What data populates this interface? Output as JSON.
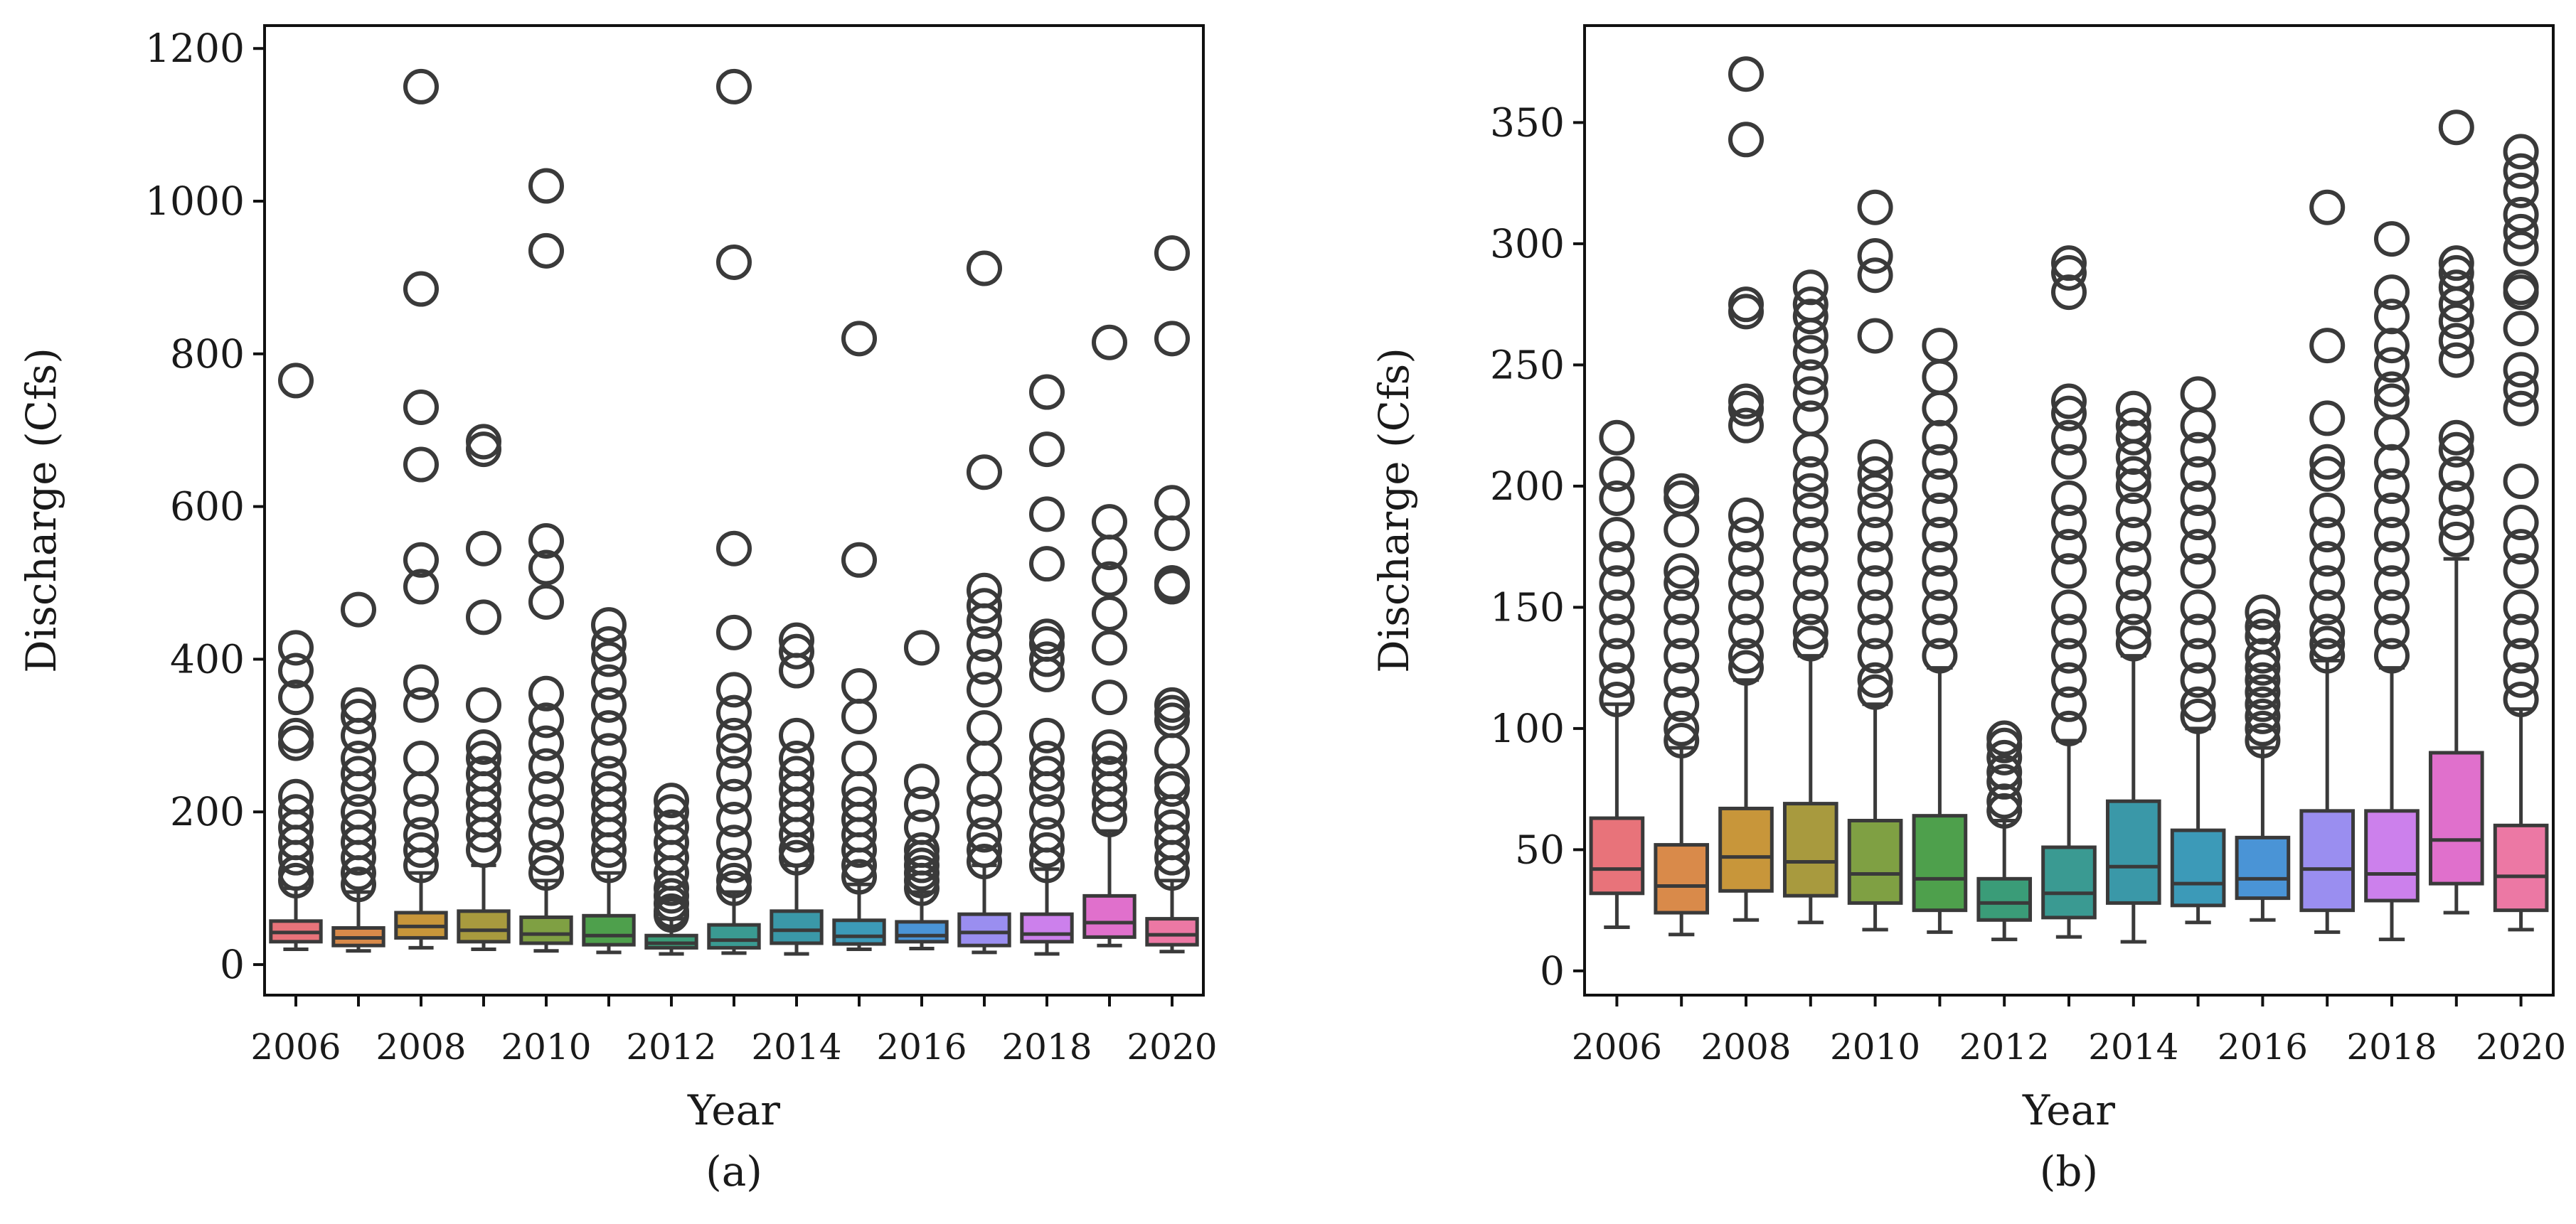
{
  "chart_data": [
    {
      "type": "box",
      "caption": "(a)",
      "title": "",
      "xlabel": "Year",
      "ylabel": "Discharge (Cfs)",
      "ylim": [
        -40,
        1230
      ],
      "yticks": [
        0,
        200,
        400,
        600,
        800,
        1000,
        1200
      ],
      "categories": [
        "2006",
        "2007",
        "2008",
        "2009",
        "2010",
        "2011",
        "2012",
        "2013",
        "2014",
        "2015",
        "2016",
        "2017",
        "2018",
        "2019",
        "2020"
      ],
      "xtick_labels": [
        "2006",
        "2008",
        "2010",
        "2012",
        "2014",
        "2016",
        "2018",
        "2020"
      ],
      "series": [
        {
          "name": "2006",
          "color": "#e8737a",
          "whisker_low": 20,
          "q1": 30,
          "median": 42,
          "q3": 57,
          "whisker_high": 100,
          "outliers": [
            765,
            415,
            385,
            350,
            300,
            290,
            220,
            200,
            180,
            160,
            140,
            120,
            110
          ]
        },
        {
          "name": "2007",
          "color": "#d98a4a",
          "whisker_low": 18,
          "q1": 25,
          "median": 35,
          "q3": 48,
          "whisker_high": 95,
          "outliers": [
            465,
            340,
            325,
            300,
            270,
            250,
            230,
            200,
            180,
            160,
            140,
            120,
            105
          ]
        },
        {
          "name": "2008",
          "color": "#c8963a",
          "whisker_low": 22,
          "q1": 35,
          "median": 50,
          "q3": 68,
          "whisker_high": 120,
          "outliers": [
            1150,
            885,
            730,
            655,
            530,
            495,
            370,
            340,
            270,
            230,
            200,
            170,
            150,
            130
          ]
        },
        {
          "name": "2009",
          "color": "#a89a3e",
          "whisker_low": 20,
          "q1": 30,
          "median": 45,
          "q3": 70,
          "whisker_high": 130,
          "outliers": [
            685,
            675,
            545,
            455,
            340,
            285,
            270,
            250,
            230,
            210,
            190,
            170,
            150
          ]
        },
        {
          "name": "2010",
          "color": "#7fa043",
          "whisker_low": 18,
          "q1": 28,
          "median": 40,
          "q3": 62,
          "whisker_high": 110,
          "outliers": [
            1020,
            935,
            555,
            520,
            475,
            355,
            320,
            290,
            260,
            230,
            200,
            170,
            140,
            120
          ]
        },
        {
          "name": "2011",
          "color": "#4ea04c",
          "whisker_low": 16,
          "q1": 26,
          "median": 38,
          "q3": 64,
          "whisker_high": 120,
          "outliers": [
            445,
            420,
            400,
            370,
            340,
            310,
            280,
            250,
            230,
            210,
            190,
            170,
            150,
            130
          ]
        },
        {
          "name": "2012",
          "color": "#3a9c78",
          "whisker_low": 14,
          "q1": 22,
          "median": 28,
          "q3": 38,
          "whisker_high": 60,
          "outliers": [
            215,
            200,
            180,
            160,
            140,
            120,
            100,
            90,
            80,
            70,
            65
          ]
        },
        {
          "name": "2013",
          "color": "#3a9a92",
          "whisker_low": 15,
          "q1": 22,
          "median": 32,
          "q3": 52,
          "whisker_high": 95,
          "outliers": [
            1150,
            920,
            545,
            435,
            360,
            330,
            300,
            280,
            250,
            220,
            190,
            160,
            130,
            110,
            100
          ]
        },
        {
          "name": "2014",
          "color": "#3a98a8",
          "whisker_low": 14,
          "q1": 28,
          "median": 45,
          "q3": 70,
          "whisker_high": 130,
          "outliers": [
            425,
            410,
            385,
            300,
            270,
            250,
            230,
            210,
            190,
            170,
            150,
            140
          ]
        },
        {
          "name": "2015",
          "color": "#3c9ab8",
          "whisker_low": 20,
          "q1": 27,
          "median": 37,
          "q3": 58,
          "whisker_high": 105,
          "outliers": [
            820,
            530,
            365,
            325,
            270,
            230,
            210,
            190,
            170,
            150,
            130,
            115
          ]
        },
        {
          "name": "2016",
          "color": "#4a94d6",
          "whisker_low": 21,
          "q1": 30,
          "median": 38,
          "q3": 56,
          "whisker_high": 95,
          "outliers": [
            415,
            240,
            210,
            180,
            150,
            140,
            130,
            120,
            110,
            100
          ]
        },
        {
          "name": "2017",
          "color": "#9a8ef0",
          "whisker_low": 16,
          "q1": 25,
          "median": 42,
          "q3": 66,
          "whisker_high": 130,
          "outliers": [
            912,
            645,
            490,
            470,
            450,
            420,
            390,
            360,
            310,
            270,
            230,
            200,
            170,
            150,
            135
          ]
        },
        {
          "name": "2018",
          "color": "#cc80ec",
          "whisker_low": 14,
          "q1": 30,
          "median": 40,
          "q3": 66,
          "whisker_high": 125,
          "outliers": [
            750,
            675,
            590,
            525,
            430,
            420,
            400,
            380,
            300,
            270,
            250,
            230,
            200,
            170,
            150,
            130
          ]
        },
        {
          "name": "2019",
          "color": "#e070cc",
          "whisker_low": 25,
          "q1": 36,
          "median": 55,
          "q3": 90,
          "whisker_high": 175,
          "outliers": [
            815,
            580,
            540,
            505,
            460,
            415,
            350,
            285,
            270,
            250,
            230,
            210,
            190
          ]
        },
        {
          "name": "2020",
          "color": "#ec78a4",
          "whisker_low": 17,
          "q1": 26,
          "median": 39,
          "q3": 60,
          "whisker_high": 110,
          "outliers": [
            932,
            820,
            605,
            565,
            500,
            495,
            340,
            330,
            320,
            280,
            240,
            230,
            200,
            180,
            160,
            140,
            120
          ]
        }
      ]
    },
    {
      "type": "box",
      "caption": "(b)",
      "title": "",
      "xlabel": "Year",
      "ylabel": "Discharge (Cfs)",
      "ylim": [
        -10,
        390
      ],
      "yticks": [
        0,
        50,
        100,
        150,
        200,
        250,
        300,
        350
      ],
      "categories": [
        "2006",
        "2007",
        "2008",
        "2009",
        "2010",
        "2011",
        "2012",
        "2013",
        "2014",
        "2015",
        "2016",
        "2017",
        "2018",
        "2019",
        "2020"
      ],
      "xtick_labels": [
        "2006",
        "2008",
        "2010",
        "2012",
        "2014",
        "2016",
        "2018",
        "2020"
      ],
      "series": [
        {
          "name": "2006",
          "color": "#e8737a",
          "whisker_low": 18,
          "q1": 32,
          "median": 42,
          "q3": 63,
          "whisker_high": 110,
          "outliers": [
            220,
            205,
            195,
            180,
            170,
            160,
            150,
            140,
            130,
            120,
            112
          ]
        },
        {
          "name": "2007",
          "color": "#d98a4a",
          "whisker_low": 15,
          "q1": 24,
          "median": 35,
          "q3": 52,
          "whisker_high": 92,
          "outliers": [
            198,
            195,
            182,
            165,
            160,
            150,
            140,
            130,
            120,
            110,
            100,
            95
          ]
        },
        {
          "name": "2008",
          "color": "#c8963a",
          "whisker_low": 21,
          "q1": 33,
          "median": 47,
          "q3": 67,
          "whisker_high": 120,
          "outliers": [
            370,
            343,
            275,
            272,
            235,
            232,
            225,
            188,
            180,
            170,
            160,
            150,
            140,
            130,
            125
          ]
        },
        {
          "name": "2009",
          "color": "#a89a3e",
          "whisker_low": 20,
          "q1": 31,
          "median": 45,
          "q3": 69,
          "whisker_high": 130,
          "outliers": [
            282,
            275,
            270,
            262,
            255,
            245,
            238,
            228,
            215,
            205,
            198,
            190,
            180,
            170,
            160,
            150,
            140,
            135
          ]
        },
        {
          "name": "2010",
          "color": "#7fa043",
          "whisker_low": 17,
          "q1": 28,
          "median": 40,
          "q3": 62,
          "whisker_high": 110,
          "outliers": [
            315,
            295,
            287,
            262,
            212,
            205,
            198,
            190,
            180,
            170,
            160,
            150,
            140,
            130,
            120,
            115
          ]
        },
        {
          "name": "2011",
          "color": "#4ea04c",
          "whisker_low": 16,
          "q1": 25,
          "median": 38,
          "q3": 64,
          "whisker_high": 125,
          "outliers": [
            258,
            245,
            232,
            220,
            210,
            200,
            190,
            180,
            170,
            160,
            150,
            140,
            130
          ]
        },
        {
          "name": "2012",
          "color": "#3a9c78",
          "whisker_low": 13,
          "q1": 21,
          "median": 28,
          "q3": 38,
          "whisker_high": 62,
          "outliers": [
            96,
            93,
            88,
            82,
            78,
            70,
            66
          ]
        },
        {
          "name": "2013",
          "color": "#3a9a92",
          "whisker_low": 14,
          "q1": 22,
          "median": 32,
          "q3": 51,
          "whisker_high": 95,
          "outliers": [
            292,
            288,
            280,
            235,
            230,
            220,
            210,
            195,
            185,
            175,
            165,
            150,
            140,
            130,
            120,
            110,
            100
          ]
        },
        {
          "name": "2014",
          "color": "#3a98a8",
          "whisker_low": 12,
          "q1": 28,
          "median": 43,
          "q3": 70,
          "whisker_high": 130,
          "outliers": [
            232,
            225,
            220,
            212,
            205,
            200,
            190,
            180,
            170,
            160,
            150,
            140,
            135
          ]
        },
        {
          "name": "2015",
          "color": "#3c9ab8",
          "whisker_low": 20,
          "q1": 27,
          "median": 36,
          "q3": 58,
          "whisker_high": 100,
          "outliers": [
            238,
            225,
            215,
            205,
            195,
            185,
            175,
            165,
            150,
            140,
            130,
            120,
            110,
            105
          ]
        },
        {
          "name": "2016",
          "color": "#4a94d6",
          "whisker_low": 21,
          "q1": 30,
          "median": 38,
          "q3": 55,
          "whisker_high": 92,
          "outliers": [
            148,
            142,
            138,
            130,
            125,
            120,
            115,
            110,
            105,
            100,
            95
          ]
        },
        {
          "name": "2017",
          "color": "#9a8ef0",
          "whisker_low": 16,
          "q1": 25,
          "median": 42,
          "q3": 66,
          "whisker_high": 128,
          "outliers": [
            315,
            258,
            228,
            210,
            205,
            190,
            180,
            170,
            160,
            150,
            140,
            135,
            130
          ]
        },
        {
          "name": "2018",
          "color": "#cc80ec",
          "whisker_low": 13,
          "q1": 29,
          "median": 40,
          "q3": 66,
          "whisker_high": 125,
          "outliers": [
            302,
            280,
            270,
            258,
            250,
            240,
            235,
            222,
            210,
            200,
            190,
            180,
            170,
            160,
            150,
            140,
            130
          ]
        },
        {
          "name": "2019",
          "color": "#e070cc",
          "whisker_low": 24,
          "q1": 36,
          "median": 54,
          "q3": 90,
          "whisker_high": 170,
          "outliers": [
            348,
            292,
            288,
            282,
            275,
            268,
            260,
            252,
            220,
            215,
            205,
            195,
            185,
            178
          ]
        },
        {
          "name": "2020",
          "color": "#ec78a4",
          "whisker_low": 17,
          "q1": 25,
          "median": 39,
          "q3": 60,
          "whisker_high": 108,
          "outliers": [
            338,
            330,
            322,
            312,
            305,
            298,
            282,
            280,
            265,
            248,
            240,
            232,
            202,
            185,
            175,
            165,
            150,
            140,
            130,
            120,
            112
          ]
        }
      ]
    }
  ]
}
